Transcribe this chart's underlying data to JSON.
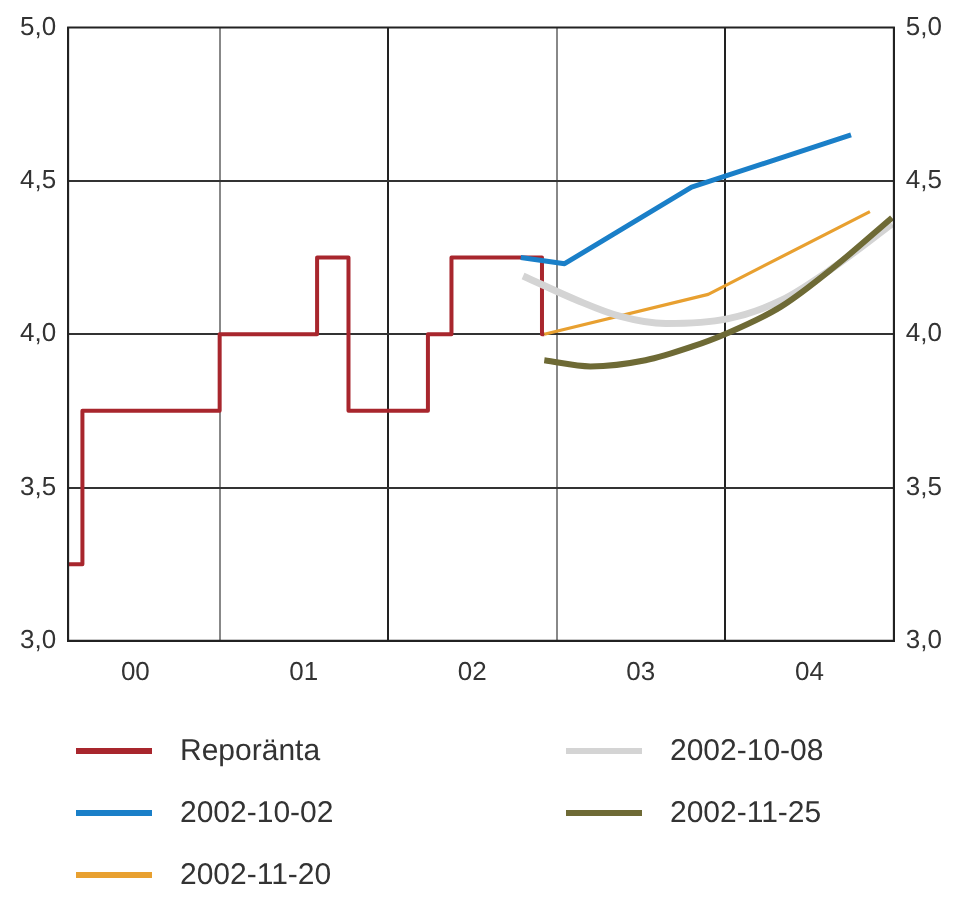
{
  "chart_data": {
    "type": "line",
    "xlim": [
      "2000-02-07",
      "2005-01-01"
    ],
    "xticks": [
      {
        "value": "2000-07-02",
        "label": "00"
      },
      {
        "value": "2001-01-01",
        "label": null
      },
      {
        "value": "2001-07-02",
        "label": "01"
      },
      {
        "value": "2002-01-01",
        "label": null
      },
      {
        "value": "2002-07-02",
        "label": "02"
      },
      {
        "value": "2003-01-01",
        "label": null
      },
      {
        "value": "2003-07-02",
        "label": "03"
      },
      {
        "value": "2004-01-01",
        "label": null
      },
      {
        "value": "2004-07-02",
        "label": "04"
      }
    ],
    "ylim": [
      3,
      5
    ],
    "yticks": [
      {
        "value": 3,
        "label": "3,0"
      },
      {
        "value": 3.5,
        "label": "3,5"
      },
      {
        "value": 4,
        "label": "4,0"
      },
      {
        "value": 4.5,
        "label": "4,5"
      },
      {
        "value": 5,
        "label": "5,0"
      }
    ],
    "y2lim": [
      3,
      5
    ],
    "y2ticks": [
      {
        "value": 3,
        "label": "3,0"
      },
      {
        "value": 3.5,
        "label": "3,5"
      },
      {
        "value": 4,
        "label": "4,0"
      },
      {
        "value": 4.5,
        "label": "4,5"
      },
      {
        "value": 5,
        "label": "5,0"
      }
    ],
    "grid": true,
    "legend": "bottom",
    "marker": "none",
    "line_style": "solid",
    "series": [
      {
        "name": "Reporänta",
        "type": "step",
        "color": "#a8262d",
        "x": [
          "2000-02-07",
          "2000-03-09",
          "2001-01-01",
          "2001-07-31",
          "2001-10-07",
          "2002-03-28",
          "2002-05-18",
          "2002-11-30",
          "2002-12-05"
        ],
        "values": [
          3.25,
          3.75,
          4.0,
          4.25,
          3.75,
          4.0,
          4.25,
          4.0,
          4.0
        ]
      },
      {
        "name": "2002-10-02",
        "color": "#1a7fc8",
        "x": [
          "2002-10-15",
          "2003-01-18",
          "2003-10-20",
          "2004-09-30"
        ],
        "values": [
          4.25,
          4.23,
          4.48,
          4.65
        ]
      },
      {
        "name": "2002-11-20",
        "color": "#e8a030",
        "x": [
          "2002-12-05",
          "2003-11-25",
          "2004-11-10"
        ],
        "values": [
          4.0,
          4.13,
          4.4
        ]
      },
      {
        "name": "2002-10-08",
        "color": "#d4d4d4",
        "x": [
          "2002-10-20",
          "2003-02-15",
          "2003-05-15",
          "2003-08-25",
          "2004-01-05",
          "2004-05-01",
          "2004-08-25",
          "2004-12-28"
        ],
        "values": [
          4.19,
          4.11,
          4.06,
          4.035,
          4.05,
          4.11,
          4.22,
          4.36
        ]
      },
      {
        "name": "2002-11-25",
        "color": "#6e6a35",
        "x": [
          "2002-12-05",
          "2003-03-15",
          "2003-07-12",
          "2003-10-22",
          "2003-12-31",
          "2004-05-01",
          "2004-08-25",
          "2004-12-28"
        ],
        "values": [
          3.915,
          3.895,
          3.915,
          3.96,
          4.0,
          4.09,
          4.22,
          4.38
        ]
      }
    ]
  }
}
